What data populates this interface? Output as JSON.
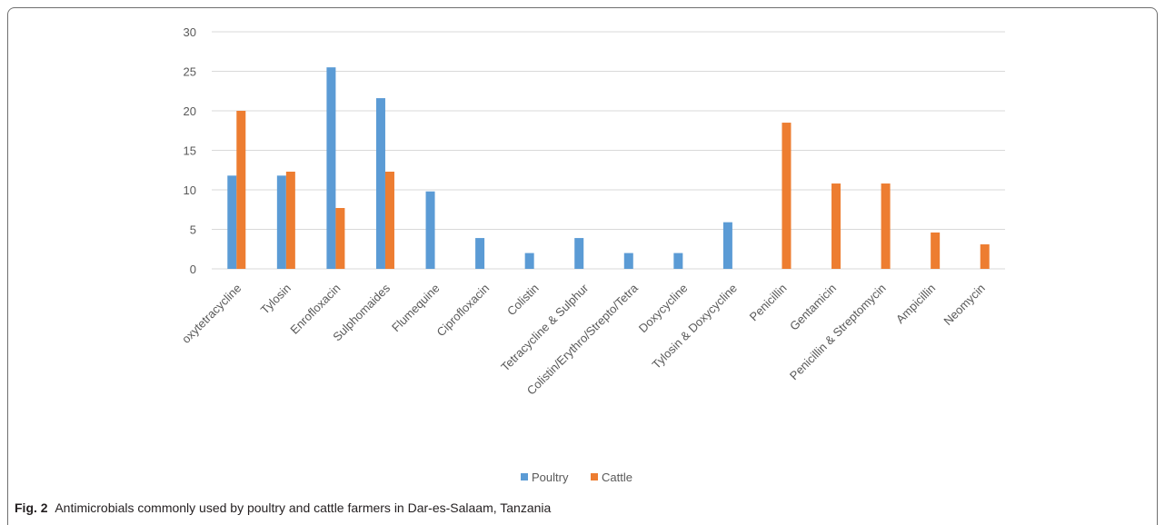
{
  "chart_data": {
    "type": "bar",
    "categories": [
      "oxytetracycline",
      "Tylosin",
      "Enrofloxacin",
      "Sulphomaides",
      "Flumequine",
      "Ciprofloxacin",
      "Colistin",
      "Tetracycline & Sulphur",
      "Colistin/Erythro/Strepto/Tetra",
      "Doxycycline",
      "Tylosin & Doxycycline",
      "Penicillin",
      "Gentamicin",
      "Penicillin & Streptomycin",
      "Ampicillin",
      "Neomycin"
    ],
    "series": [
      {
        "name": "Poultry",
        "color": "#5b9bd5",
        "values": [
          11.8,
          11.8,
          25.5,
          21.6,
          9.8,
          3.9,
          2.0,
          3.9,
          2.0,
          2.0,
          5.9,
          0,
          0,
          0,
          0,
          0
        ]
      },
      {
        "name": "Cattle",
        "color": "#ed7d31",
        "values": [
          20.0,
          12.3,
          7.7,
          12.3,
          0,
          0,
          0,
          0,
          0,
          0,
          0,
          18.5,
          10.8,
          10.8,
          4.6,
          3.1
        ]
      }
    ],
    "yticks": [
      0,
      5,
      10,
      15,
      20,
      25,
      30
    ],
    "ylim": [
      0,
      30
    ],
    "grid": true,
    "legend_position": "bottom-center"
  },
  "caption": {
    "label": "Fig. 2",
    "text": "Antimicrobials commonly used by poultry and cattle farmers in Dar-es-Salaam, Tanzania"
  }
}
